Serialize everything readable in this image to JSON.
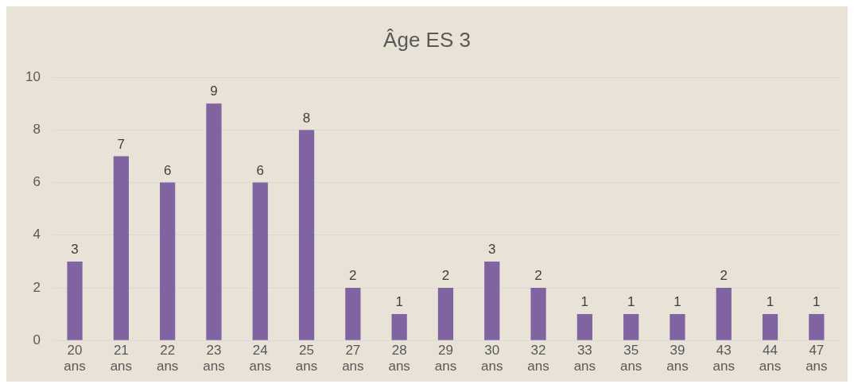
{
  "chart_data": {
    "type": "bar",
    "title": "Âge ES 3",
    "categories": [
      "20 ans",
      "21 ans",
      "22 ans",
      "23 ans",
      "24 ans",
      "25 ans",
      "27 ans",
      "28 ans",
      "29 ans",
      "30 ans",
      "32 ans",
      "33 ans",
      "35 ans",
      "39 ans",
      "43 ans",
      "44 ans",
      "47 ans"
    ],
    "values": [
      3,
      7,
      6,
      9,
      6,
      8,
      2,
      1,
      2,
      3,
      2,
      1,
      1,
      1,
      2,
      1,
      1
    ],
    "color": "#8064a2",
    "ylim": [
      0,
      10
    ],
    "yticks": [
      0,
      2,
      4,
      6,
      8,
      10
    ],
    "grid": "y",
    "data_labels": true,
    "legend": false
  }
}
